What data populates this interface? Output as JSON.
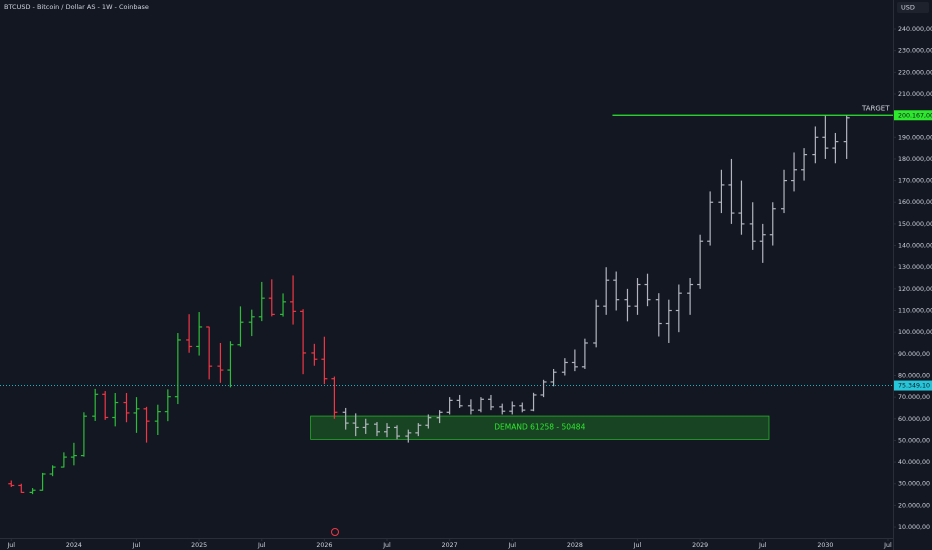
{
  "chart_data": {
    "type": "ohlc",
    "title": "BTCUSD - Bitcoin / Dollar AS - 1W - Coinbase",
    "currency": "USD",
    "xlim": [
      2023.41,
      2030.54
    ],
    "ylim": [
      -600,
      253400
    ],
    "xticks": [
      {
        "value": 2023.5,
        "label": "Jul"
      },
      2024,
      {
        "value": 2024.5,
        "label": "Jul"
      },
      2025,
      {
        "value": 2025.5,
        "label": "Jul"
      },
      2026,
      {
        "value": 2026.5,
        "label": "Jul"
      },
      2027,
      {
        "value": 2027.5,
        "label": "Jul"
      },
      2028,
      {
        "value": 2028.5,
        "label": "Jul"
      },
      2029,
      {
        "value": 2029.5,
        "label": "Jul"
      },
      2030,
      {
        "value": 2030.5,
        "label": "Jul"
      }
    ],
    "yticks": [
      {
        "value": 10000,
        "label": "10.000,00"
      },
      {
        "value": 20000,
        "label": "20.000,00"
      },
      {
        "value": 30000,
        "label": "30.000,00"
      },
      {
        "value": 40000,
        "label": "40.000,00"
      },
      {
        "value": 50000,
        "label": "50.000,00"
      },
      {
        "value": 60000,
        "label": "60.000,00"
      },
      {
        "value": 70000,
        "label": "70.000,00"
      },
      {
        "value": 80000,
        "label": "80.000,00"
      },
      {
        "value": 90000,
        "label": "90.000,00"
      },
      {
        "value": 100000,
        "label": "100.000,00"
      },
      {
        "value": 110000,
        "label": "110.000,00"
      },
      {
        "value": 120000,
        "label": "120.000,00"
      },
      {
        "value": 130000,
        "label": "130.000,00"
      },
      {
        "value": 140000,
        "label": "140.000,00"
      },
      {
        "value": 150000,
        "label": "150.000,00"
      },
      {
        "value": 160000,
        "label": "160.000,00"
      },
      {
        "value": 170000,
        "label": "170.000,00"
      },
      {
        "value": 180000,
        "label": "180.000,00"
      },
      {
        "value": 190000,
        "label": "190.000,00"
      },
      {
        "value": 200000,
        "label": "200.000,00"
      },
      {
        "value": 210000,
        "label": "210.000,00"
      },
      {
        "value": 220000,
        "label": "220.000,00"
      },
      {
        "value": 230000,
        "label": "230.000,00"
      },
      {
        "value": 240000,
        "label": "240.000,00"
      }
    ],
    "series": [
      {
        "up_color": "#2ebd3a",
        "down_color": "#f23645",
        "x": [
          2023.5,
          2023.58,
          2023.67,
          2023.75,
          2023.83,
          2023.92,
          2024.0,
          2024.08,
          2024.17,
          2024.25,
          2024.33,
          2024.42,
          2024.5,
          2024.58,
          2024.67,
          2024.75,
          2024.83,
          2024.92,
          2025.0,
          2025.08,
          2025.17,
          2025.25,
          2025.33,
          2025.42,
          2025.5,
          2025.58,
          2025.67,
          2025.75,
          2025.83,
          2025.92,
          2026.0,
          2026.08
        ],
        "open": [
          30000,
          29200,
          26000,
          27000,
          34500,
          37700,
          42300,
          43000,
          61200,
          71300,
          60600,
          67500,
          62700,
          64600,
          58900,
          63300,
          70200,
          96400,
          93400,
          102400,
          84300,
          82500,
          94200,
          104600,
          107100,
          115700,
          108200,
          114000,
          109600,
          90400,
          87500,
          78500
        ],
        "high": [
          31500,
          30000,
          28000,
          35000,
          38500,
          44500,
          48900,
          63000,
          73800,
          72800,
          71900,
          71900,
          70000,
          65500,
          66500,
          73600,
          99600,
          108300,
          109300,
          102500,
          95000,
          95800,
          111900,
          110400,
          123200,
          124400,
          117900,
          126200,
          110600,
          94600,
          97900,
          79500
        ],
        "low": [
          28500,
          25800,
          25200,
          26800,
          33500,
          37500,
          38500,
          42500,
          59000,
          59500,
          56500,
          58400,
          53500,
          49000,
          52500,
          58900,
          66800,
          90500,
          89200,
          78200,
          76600,
          74500,
          93300,
          98200,
          105100,
          107300,
          107200,
          103500,
          80600,
          84500,
          76000,
          60000
        ],
        "close": [
          29200,
          26000,
          27000,
          34500,
          37700,
          42300,
          43000,
          61200,
          71300,
          60600,
          67500,
          62700,
          64600,
          58900,
          63300,
          70200,
          96400,
          93400,
          102400,
          84300,
          82500,
          94200,
          104600,
          107100,
          115700,
          108200,
          114000,
          109600,
          90400,
          87500,
          78500,
          63000
        ]
      },
      {
        "color": "#b2b5be",
        "x": [
          2026.17,
          2026.25,
          2026.33,
          2026.42,
          2026.5,
          2026.58,
          2026.67,
          2026.75,
          2026.83,
          2026.92,
          2027.0,
          2027.08,
          2027.17,
          2027.25,
          2027.33,
          2027.42,
          2027.5,
          2027.58,
          2027.67,
          2027.75,
          2027.83,
          2027.92,
          2028.0,
          2028.08,
          2028.17,
          2028.25,
          2028.33,
          2028.42,
          2028.5,
          2028.58,
          2028.67,
          2028.75,
          2028.83,
          2028.92,
          2029.0,
          2029.08,
          2029.17,
          2029.25,
          2029.33,
          2029.42,
          2029.5,
          2029.58,
          2029.67,
          2029.75,
          2029.83,
          2029.92,
          2030.0,
          2030.08,
          2030.17
        ],
        "open": [
          63000,
          58000,
          56000,
          57500,
          54000,
          56000,
          52000,
          53500,
          57000,
          60500,
          63000,
          68500,
          66000,
          64000,
          69000,
          65500,
          63500,
          66000,
          64000,
          71000,
          77000,
          81500,
          86000,
          84000,
          95000,
          112000,
          124000,
          115000,
          112000,
          122000,
          115000,
          104000,
          110000,
          118000,
          122000,
          142000,
          160000,
          168000,
          155000,
          150000,
          142000,
          145000,
          157000,
          170000,
          175000,
          182000,
          190000,
          185000,
          188000
        ],
        "high": [
          65000,
          62500,
          60000,
          58500,
          58000,
          57000,
          55000,
          58000,
          62000,
          64000,
          70000,
          71000,
          69000,
          70000,
          71000,
          67000,
          68000,
          67500,
          72000,
          78000,
          83000,
          88000,
          92000,
          97000,
          115000,
          130000,
          128000,
          120000,
          125000,
          127000,
          118000,
          115000,
          122000,
          125000,
          145000,
          165000,
          175000,
          180000,
          170000,
          160000,
          150000,
          160000,
          175000,
          183000,
          185000,
          195000,
          200000,
          192000,
          200167
        ],
        "low": [
          55000,
          52000,
          53000,
          52000,
          51500,
          50500,
          49000,
          52000,
          55500,
          58000,
          62000,
          65000,
          62000,
          63000,
          64000,
          62000,
          62000,
          63000,
          63500,
          70000,
          75000,
          80000,
          82000,
          83000,
          93000,
          108000,
          110000,
          105000,
          108000,
          112000,
          98000,
          95000,
          100000,
          108000,
          120000,
          140000,
          155000,
          150000,
          145000,
          138000,
          132000,
          140000,
          155000,
          165000,
          170000,
          178000,
          180000,
          178000,
          180000
        ],
        "close": [
          58000,
          56000,
          57500,
          54000,
          56000,
          52000,
          53500,
          57000,
          60500,
          63000,
          68500,
          66000,
          64000,
          69000,
          65500,
          63500,
          66000,
          64000,
          71000,
          77000,
          81500,
          86000,
          84000,
          95000,
          112000,
          124000,
          115000,
          112000,
          122000,
          115000,
          104000,
          110000,
          118000,
          122000,
          142000,
          160000,
          168000,
          155000,
          150000,
          142000,
          145000,
          157000,
          170000,
          175000,
          182000,
          190000,
          185000,
          188000,
          199000
        ]
      }
    ],
    "last_price": {
      "value": 75349.1,
      "label": "75.349,10",
      "color": "#26c6da"
    },
    "target": {
      "label": "TARGET",
      "value": 200167,
      "value_label": "200.167,00",
      "start": 2028.3,
      "color": "#2ee82e"
    },
    "zone": {
      "label": "DEMAND 61258 - 50484",
      "high": 61258,
      "low": 50484,
      "start": 2025.89,
      "end": 2029.55,
      "color": "#2ee82e"
    }
  }
}
